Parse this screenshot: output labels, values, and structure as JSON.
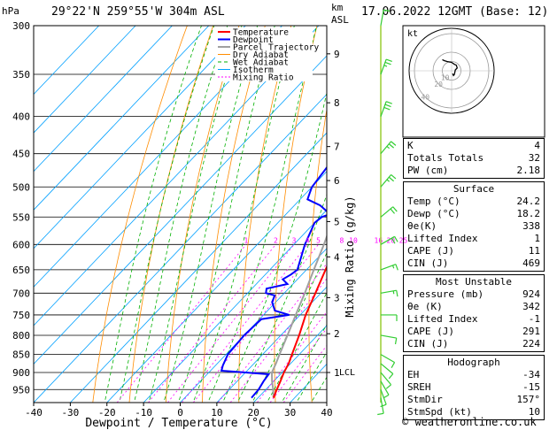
{
  "header": {
    "location": "29°22'N  259°55'W  304m  ASL",
    "date": "17.06.2022  12GMT  (Base: 12)",
    "left_unit": "hPa",
    "right_unit_km": "km",
    "right_unit_asl": "ASL"
  },
  "colors": {
    "temperature": "#ff0000",
    "dewpoint": "#0000ff",
    "parcel": "#a0a0a0",
    "dry_adiabat": "#ff8c00",
    "wet_adiabat": "#00b000",
    "isotherm": "#00a0ff",
    "mixing_ratio": "#ff00ff"
  },
  "chart_data": {
    "type": "line",
    "xlabel": "Dewpoint / Temperature (°C)",
    "y2label": "Mixing Ratio (g/kg)",
    "xlim": [
      -40,
      40
    ],
    "ylim_hpa": [
      300,
      990
    ],
    "x_ticks": [
      -40,
      -30,
      -20,
      -10,
      0,
      10,
      20,
      30,
      40
    ],
    "pressure_ticks": [
      300,
      350,
      400,
      450,
      500,
      550,
      600,
      650,
      700,
      750,
      800,
      850,
      900,
      950
    ],
    "km_ticks": [
      {
        "label": "9",
        "p": 328
      },
      {
        "label": "8",
        "p": 383
      },
      {
        "label": "7",
        "p": 440
      },
      {
        "label": "6",
        "p": 490
      },
      {
        "label": "5",
        "p": 558
      },
      {
        "label": "4",
        "p": 624
      },
      {
        "label": "3",
        "p": 710
      },
      {
        "label": "2",
        "p": 796
      },
      {
        "label": "1",
        "p": 900
      }
    ],
    "lcl": {
      "label": "LCL",
      "p": 898
    },
    "mixing_ratio_labels": [
      "1",
      "2",
      "3",
      "4",
      "5",
      "8",
      "10",
      "16",
      "20",
      "25"
    ],
    "mixing_ratio_values": [
      1,
      2,
      3,
      4,
      5,
      8,
      10,
      16,
      20,
      25
    ],
    "legend": [
      "Temperature",
      "Dewpoint",
      "Parcel Trajectory",
      "Dry Adiabat",
      "Wet Adiabat",
      "Isotherm",
      "Mixing Ratio"
    ],
    "temperature": [
      [
        975,
        24.2
      ],
      [
        950,
        23.0
      ],
      [
        925,
        21.8
      ],
      [
        900,
        20.5
      ],
      [
        875,
        19.5
      ],
      [
        850,
        18.0
      ],
      [
        800,
        15.0
      ],
      [
        750,
        11.5
      ],
      [
        700,
        8.5
      ],
      [
        650,
        5.2
      ],
      [
        600,
        1.8
      ],
      [
        550,
        -2.2
      ],
      [
        500,
        -6.6
      ],
      [
        450,
        -11.8
      ],
      [
        400,
        -18.0
      ],
      [
        370,
        -22.0
      ],
      [
        350,
        -24.8
      ],
      [
        300,
        -32.0
      ]
    ],
    "dewpoint": [
      [
        975,
        18.2
      ],
      [
        950,
        18.0
      ],
      [
        925,
        17.2
      ],
      [
        905,
        16.8
      ],
      [
        900,
        10.0
      ],
      [
        895,
        3.0
      ],
      [
        880,
        2.0
      ],
      [
        860,
        1.0
      ],
      [
        850,
        0.5
      ],
      [
        800,
        0.0
      ],
      [
        760,
        0.5
      ],
      [
        750,
        7.0
      ],
      [
        740,
        2.0
      ],
      [
        720,
        -1.0
      ],
      [
        705,
        -2.0
      ],
      [
        700,
        -5.0
      ],
      [
        690,
        -6.0
      ],
      [
        680,
        -1.5
      ],
      [
        670,
        -4.0
      ],
      [
        660,
        -3.0
      ],
      [
        650,
        -2.5
      ],
      [
        600,
        -7.0
      ],
      [
        560,
        -10.0
      ],
      [
        550,
        -9.5
      ],
      [
        545,
        -8.0
      ],
      [
        530,
        -13.0
      ],
      [
        520,
        -18.0
      ],
      [
        510,
        -19.0
      ],
      [
        500,
        -20.0
      ],
      [
        470,
        -21.0
      ],
      [
        450,
        -21.5
      ],
      [
        430,
        -20.0
      ],
      [
        420,
        -19.0
      ],
      [
        415,
        -10.0
      ],
      [
        410,
        -14.0
      ],
      [
        405,
        -9.0
      ],
      [
        400,
        -8.0
      ],
      [
        395,
        -11.0
      ],
      [
        390,
        -10.0
      ],
      [
        380,
        -12.0
      ],
      [
        375,
        -14.0
      ],
      [
        370,
        -14.5
      ],
      [
        355,
        -15.0
      ],
      [
        350,
        -35.0
      ],
      [
        345,
        -30.0
      ],
      [
        340,
        -26.0
      ],
      [
        335,
        -24.0
      ],
      [
        330,
        -23.5
      ],
      [
        325,
        -24.0
      ],
      [
        310,
        -30.0
      ],
      [
        300,
        -32.0
      ]
    ],
    "parcel": [
      [
        975,
        24.2
      ],
      [
        950,
        22.0
      ],
      [
        925,
        19.5
      ],
      [
        900,
        17.2
      ],
      [
        875,
        16.0
      ],
      [
        850,
        14.6
      ],
      [
        800,
        11.8
      ],
      [
        750,
        8.8
      ],
      [
        700,
        5.6
      ],
      [
        650,
        2.0
      ],
      [
        600,
        -1.8
      ],
      [
        550,
        -6.2
      ],
      [
        500,
        -11.2
      ],
      [
        450,
        -17.0
      ],
      [
        400,
        -23.8
      ],
      [
        350,
        -32.0
      ],
      [
        300,
        -41.0
      ]
    ],
    "wind_barbs": [
      {
        "p": 975,
        "dir": 170,
        "kt": 10
      },
      {
        "p": 950,
        "dir": 160,
        "kt": 10
      },
      {
        "p": 925,
        "dir": 150,
        "kt": 10
      },
      {
        "p": 900,
        "dir": 140,
        "kt": 10
      },
      {
        "p": 875,
        "dir": 130,
        "kt": 10
      },
      {
        "p": 850,
        "dir": 120,
        "kt": 10
      },
      {
        "p": 800,
        "dir": 100,
        "kt": 10
      },
      {
        "p": 750,
        "dir": 90,
        "kt": 10
      },
      {
        "p": 700,
        "dir": 80,
        "kt": 15
      },
      {
        "p": 650,
        "dir": 70,
        "kt": 15
      },
      {
        "p": 600,
        "dir": 60,
        "kt": 20
      },
      {
        "p": 550,
        "dir": 50,
        "kt": 20
      },
      {
        "p": 500,
        "dir": 40,
        "kt": 25
      },
      {
        "p": 450,
        "dir": 40,
        "kt": 25
      },
      {
        "p": 400,
        "dir": 20,
        "kt": 30
      },
      {
        "p": 350,
        "dir": 20,
        "kt": 25
      },
      {
        "p": 300,
        "dir": 10,
        "kt": 10
      }
    ]
  },
  "hodograph": {
    "unit": "kt",
    "ring_labels": [
      "10",
      "20",
      "40"
    ],
    "ring_values": [
      10,
      20,
      40
    ],
    "trace": [
      [
        0.5,
        -1.5
      ],
      [
        1.0,
        -2.5
      ],
      [
        1.5,
        -2.0
      ],
      [
        2.0,
        0.5
      ],
      [
        3.0,
        1.5
      ],
      [
        2.5,
        3.0
      ],
      [
        1.5,
        3.5
      ],
      [
        0.0,
        4.5
      ],
      [
        -2.5,
        5.0
      ],
      [
        -4.0,
        5.5
      ],
      [
        -5.0,
        6.0
      ]
    ]
  },
  "tables": {
    "indices": [
      {
        "label": "K",
        "value": "4"
      },
      {
        "label": "Totals Totals",
        "value": "32"
      },
      {
        "label": "PW (cm)",
        "value": "2.18"
      }
    ],
    "surface": {
      "title": "Surface",
      "rows": [
        {
          "label": "Temp (°C)",
          "value": "24.2"
        },
        {
          "label": "Dewp (°C)",
          "value": "18.2"
        },
        {
          "label": "θe(K)",
          "value": "338"
        },
        {
          "label": "Lifted Index",
          "value": "1"
        },
        {
          "label": "CAPE (J)",
          "value": "11"
        },
        {
          "label": "CIN (J)",
          "value": "469"
        }
      ]
    },
    "most_unstable": {
      "title": "Most Unstable",
      "rows": [
        {
          "label": "Pressure (mb)",
          "value": "924"
        },
        {
          "label": "θe (K)",
          "value": "342"
        },
        {
          "label": "Lifted Index",
          "value": "-1"
        },
        {
          "label": "CAPE (J)",
          "value": "291"
        },
        {
          "label": "CIN (J)",
          "value": "224"
        }
      ]
    },
    "hodograph": {
      "title": "Hodograph",
      "rows": [
        {
          "label": "EH",
          "value": "-34"
        },
        {
          "label": "SREH",
          "value": "-15"
        },
        {
          "label": "StmDir",
          "value": "157°"
        },
        {
          "label": "StmSpd (kt)",
          "value": "10"
        }
      ]
    }
  },
  "footer": "© weatheronline.co.uk"
}
